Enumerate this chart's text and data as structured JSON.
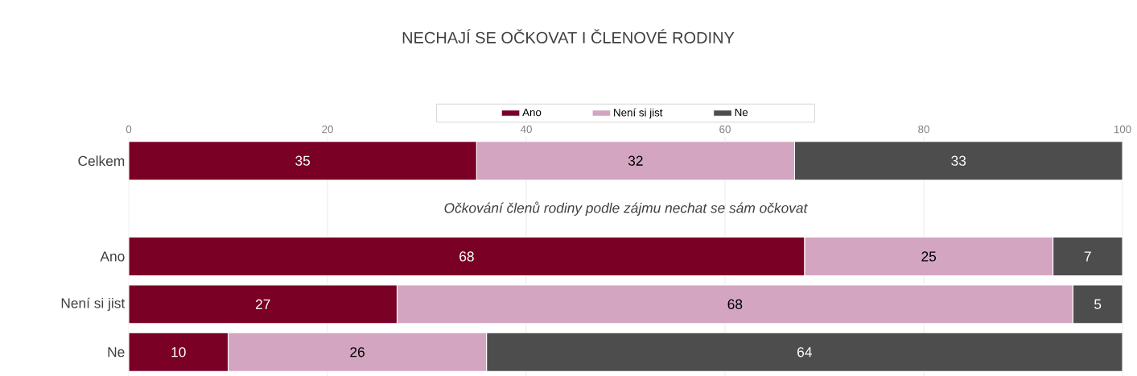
{
  "chart_data": {
    "type": "bar",
    "orientation": "horizontal",
    "stacked": true,
    "title": "NECHAJÍ SE OČKOVAT I ČLENOVÉ RODINY",
    "categories": [
      "Celkem",
      null,
      "Ano",
      "Není si jist",
      "Ne"
    ],
    "series": [
      {
        "name": "Ano",
        "color": "#7a0026",
        "values": [
          35,
          null,
          68,
          27,
          10
        ],
        "value_labels": [
          "35",
          null,
          "68",
          "27",
          "10"
        ]
      },
      {
        "name": "Není si jist",
        "color": "#d3a5c0",
        "values": [
          32,
          null,
          25,
          68,
          26
        ],
        "value_labels": [
          "32",
          null,
          "25",
          "68",
          "26"
        ]
      },
      {
        "name": "Ne",
        "color": "#4d4d4d",
        "values": [
          33,
          null,
          7,
          5,
          64
        ],
        "value_labels": [
          "33",
          null,
          "7",
          "5",
          "64"
        ]
      }
    ],
    "xlim": [
      0,
      100
    ],
    "xticks": [
      0,
      20,
      40,
      60,
      80,
      100
    ],
    "grid": "x",
    "legend": "top",
    "annotations": [
      "Očkování členů rodiny podle zájmu nechat se sám očkovat"
    ]
  }
}
